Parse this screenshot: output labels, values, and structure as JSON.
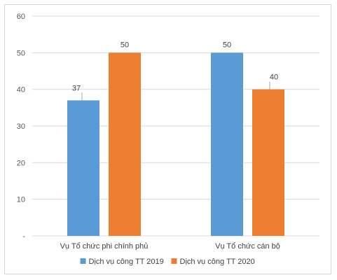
{
  "chart_data": {
    "type": "bar",
    "categories": [
      "Vụ Tổ chức phi chính phủ",
      "Vụ Tổ chức cán bộ"
    ],
    "series": [
      {
        "name": "Dịch vụ công TT 2019",
        "values": [
          37,
          50
        ],
        "color": "#5b9bd5"
      },
      {
        "name": "Dịch vụ công TT 2020",
        "values": [
          50,
          40
        ],
        "color": "#ed7d31"
      }
    ],
    "y_ticks": [
      "-",
      "10",
      "20",
      "30",
      "40",
      "50",
      "60"
    ],
    "ylim": [
      0,
      60
    ],
    "grid": true,
    "legend_position": "bottom"
  }
}
